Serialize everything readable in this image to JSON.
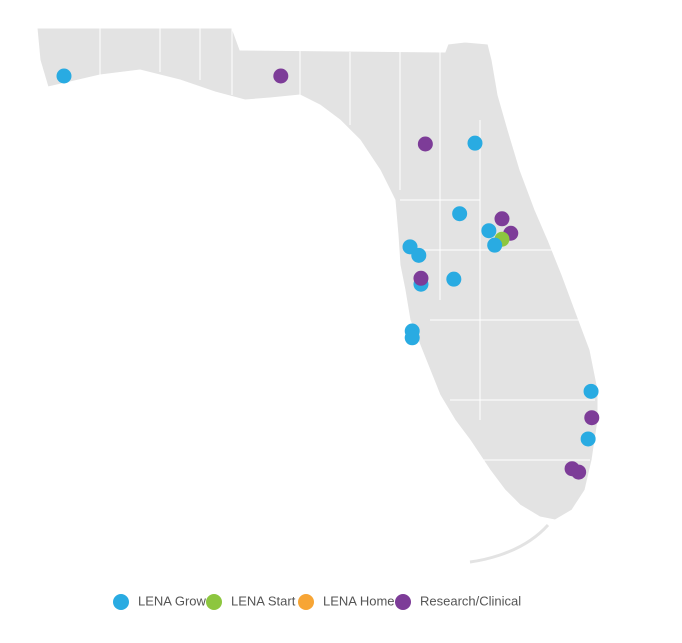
{
  "legend": [
    {
      "name": "LENA Grow",
      "color": "#29abe2"
    },
    {
      "name": "LENA Start",
      "color": "#8dc63f"
    },
    {
      "name": "LENA Home",
      "color": "#f7a535"
    },
    {
      "name": "Research/Clinical",
      "color": "#7d3c98"
    }
  ],
  "markers": [
    {
      "group": 0,
      "lon": -87.2,
      "lat": 30.4
    },
    {
      "group": 0,
      "lon": -81.57,
      "lat": 29.61
    },
    {
      "group": 0,
      "lon": -81.78,
      "lat": 28.78
    },
    {
      "group": 0,
      "lon": -81.38,
      "lat": 28.58
    },
    {
      "group": 0,
      "lon": -82.46,
      "lat": 28.39
    },
    {
      "group": 0,
      "lon": -82.34,
      "lat": 28.29
    },
    {
      "group": 0,
      "lon": -81.86,
      "lat": 28.01
    },
    {
      "group": 0,
      "lon": -82.31,
      "lat": 27.95
    },
    {
      "group": 0,
      "lon": -82.43,
      "lat": 27.4
    },
    {
      "group": 0,
      "lon": -82.43,
      "lat": 27.32
    },
    {
      "group": 0,
      "lon": -79.98,
      "lat": 26.69
    },
    {
      "group": 0,
      "lon": -80.02,
      "lat": 26.13
    },
    {
      "group": 3,
      "lon": -84.23,
      "lat": 30.4
    },
    {
      "group": 3,
      "lon": -82.25,
      "lat": 29.6
    },
    {
      "group": 3,
      "lon": -81.2,
      "lat": 28.72
    },
    {
      "group": 3,
      "lon": -81.08,
      "lat": 28.55
    },
    {
      "group": 3,
      "lon": -82.31,
      "lat": 28.02
    },
    {
      "group": 3,
      "lon": -79.97,
      "lat": 26.38
    },
    {
      "group": 3,
      "lon": -80.24,
      "lat": 25.78
    },
    {
      "group": 3,
      "lon": -80.15,
      "lat": 25.74
    },
    {
      "group": 1,
      "lon": -81.2,
      "lat": 28.48
    },
    {
      "group": 0,
      "lon": -81.3,
      "lat": 28.41
    }
  ]
}
